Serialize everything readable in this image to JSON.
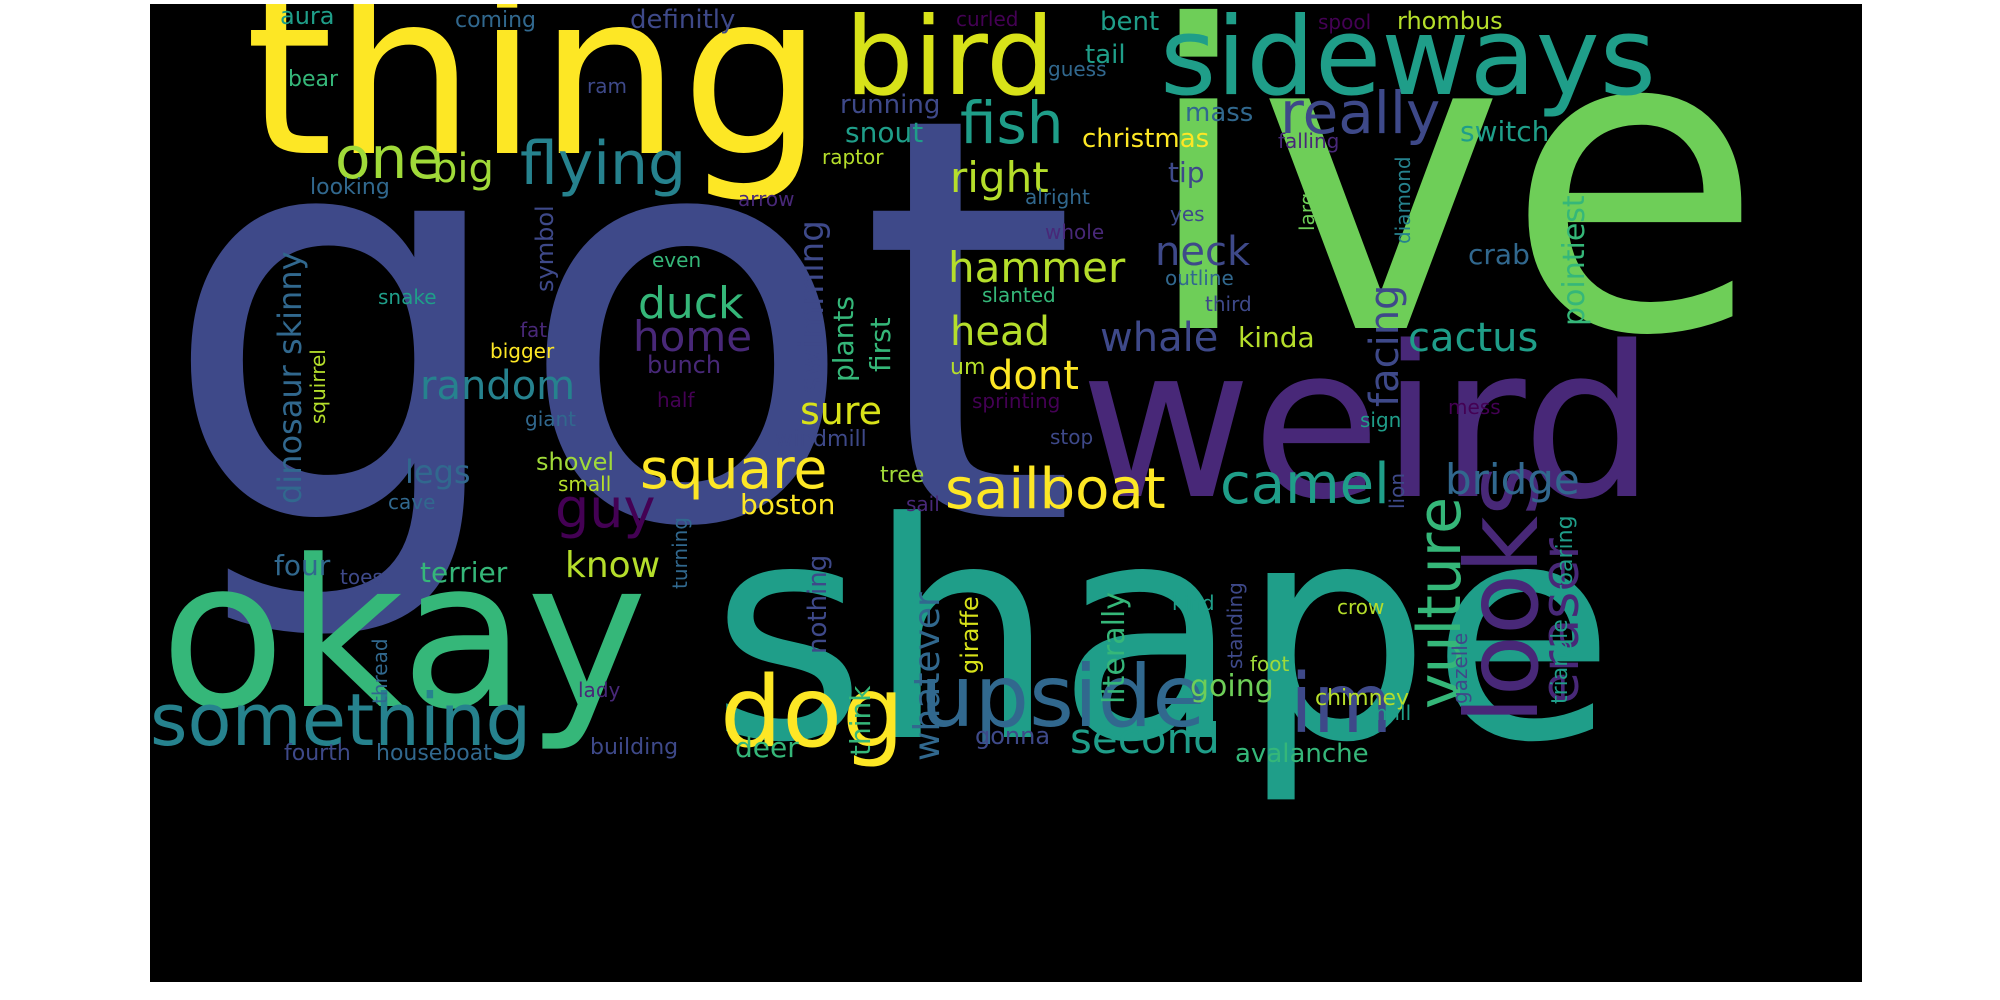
{
  "background": "#000000",
  "palette": {
    "yellow": "#fde725",
    "lime": "#b5de2b",
    "green": "#6ece58",
    "sea": "#35b779",
    "teal": "#1f9e89",
    "cyan": "#26828e",
    "blue": "#31688e",
    "indigo": "#3e4989",
    "purple": "#482878",
    "violet": "#440154"
  },
  "words": [
    {
      "text": "got",
      "color": "#3e4989"
    },
    {
      "text": "ive",
      "color": "#6ece58"
    },
    {
      "text": "shape",
      "color": "#1f9e89"
    },
    {
      "text": "thing",
      "color": "#fde725"
    },
    {
      "text": "weird",
      "color": "#482878"
    },
    {
      "text": "okay",
      "color": "#35b779"
    },
    {
      "text": "sideways",
      "color": "#1f9e89"
    },
    {
      "text": "bird",
      "color": "#d8e219"
    },
    {
      "text": "looks",
      "color": "#482878"
    },
    {
      "text": "dog",
      "color": "#fde725"
    },
    {
      "text": "upside",
      "color": "#31688e"
    },
    {
      "text": "something",
      "color": "#26828e"
    },
    {
      "text": "im",
      "color": "#3e4989"
    },
    {
      "text": "flying",
      "color": "#26828e"
    },
    {
      "text": "fish",
      "color": "#1f9e89"
    },
    {
      "text": "really",
      "color": "#3e4989"
    },
    {
      "text": "one",
      "color": "#a0da39"
    },
    {
      "text": "square",
      "color": "#fde725"
    },
    {
      "text": "sailboat",
      "color": "#fde725"
    },
    {
      "text": "camel",
      "color": "#1f9e89"
    },
    {
      "text": "vulture",
      "color": "#35b779"
    },
    {
      "text": "eraser",
      "color": "#482878"
    },
    {
      "text": "guy",
      "color": "#440154"
    },
    {
      "text": "bridge",
      "color": "#31688e"
    },
    {
      "text": "second",
      "color": "#1f9e89"
    },
    {
      "text": "duck",
      "color": "#35b779"
    },
    {
      "text": "home",
      "color": "#482878"
    },
    {
      "text": "random",
      "color": "#26828e"
    },
    {
      "text": "big",
      "color": "#a0da39"
    },
    {
      "text": "right",
      "color": "#b5de2b"
    },
    {
      "text": "hammer",
      "color": "#b5de2b"
    },
    {
      "text": "head",
      "color": "#b5de2b"
    },
    {
      "text": "neck",
      "color": "#3e4989"
    },
    {
      "text": "whale",
      "color": "#3e4989"
    },
    {
      "text": "cactus",
      "color": "#1f9e89"
    },
    {
      "text": "facing",
      "color": "#3e4989"
    },
    {
      "text": "dont",
      "color": "#fde725"
    },
    {
      "text": "sure",
      "color": "#d8e219"
    },
    {
      "text": "swimming",
      "color": "#3e4989"
    },
    {
      "text": "whatever",
      "color": "#31688e"
    },
    {
      "text": "dinosaur skinny",
      "color": "#31688e"
    },
    {
      "text": "know",
      "color": "#b5de2b"
    },
    {
      "text": "legs",
      "color": "#31688e"
    },
    {
      "text": "terrier",
      "color": "#35b779"
    },
    {
      "text": "four",
      "color": "#31688e"
    },
    {
      "text": "boston",
      "color": "#fde725"
    },
    {
      "text": "going",
      "color": "#6ece58"
    },
    {
      "text": "literally",
      "color": "#35b779"
    },
    {
      "text": "avalanche",
      "color": "#35b779"
    },
    {
      "text": "snout",
      "color": "#1f9e89"
    },
    {
      "text": "christmas",
      "color": "#fde725"
    },
    {
      "text": "mass",
      "color": "#31688e"
    },
    {
      "text": "switch",
      "color": "#1f9e89"
    },
    {
      "text": "tip",
      "color": "#3e4989"
    },
    {
      "text": "crab",
      "color": "#31688e"
    },
    {
      "text": "pointiest",
      "color": "#35b779"
    },
    {
      "text": "kinda",
      "color": "#b5de2b"
    },
    {
      "text": "plants",
      "color": "#35b779"
    },
    {
      "text": "first",
      "color": "#35b779"
    },
    {
      "text": "think",
      "color": "#35b779"
    },
    {
      "text": "nothing",
      "color": "#3e4989"
    },
    {
      "text": "giraffe",
      "color": "#d8e219"
    },
    {
      "text": "deer",
      "color": "#35b779"
    },
    {
      "text": "gonna",
      "color": "#3e4989"
    },
    {
      "text": "chimney",
      "color": "#b5de2b"
    },
    {
      "text": "triangle",
      "color": "#1f9e89"
    },
    {
      "text": "roaring",
      "color": "#1f9e89"
    },
    {
      "text": "running",
      "color": "#3e4989"
    },
    {
      "text": "tail",
      "color": "#1f9e89"
    },
    {
      "text": "bent",
      "color": "#1f9e89"
    },
    {
      "text": "definitly",
      "color": "#3e4989"
    },
    {
      "text": "coming",
      "color": "#31688e"
    },
    {
      "text": "aura",
      "color": "#1f9e89"
    },
    {
      "text": "bear",
      "color": "#35b779"
    },
    {
      "text": "ram",
      "color": "#3e4989"
    },
    {
      "text": "guess",
      "color": "#31688e"
    },
    {
      "text": "curled",
      "color": "#440154"
    },
    {
      "text": "spool",
      "color": "#440154"
    },
    {
      "text": "rhombus",
      "color": "#b5de2b"
    },
    {
      "text": "raptor",
      "color": "#b5de2b"
    },
    {
      "text": "falling",
      "color": "#482878"
    },
    {
      "text": "alright",
      "color": "#31688e"
    },
    {
      "text": "looking",
      "color": "#31688e"
    },
    {
      "text": "arrow",
      "color": "#482878"
    },
    {
      "text": "yes",
      "color": "#3e4989"
    },
    {
      "text": "large",
      "color": "#6ece58"
    },
    {
      "text": "diamond",
      "color": "#26828e"
    },
    {
      "text": "whole",
      "color": "#482878"
    },
    {
      "text": "outline",
      "color": "#31688e"
    },
    {
      "text": "third",
      "color": "#3e4989"
    },
    {
      "text": "even",
      "color": "#35b779"
    },
    {
      "text": "snake",
      "color": "#1f9e89"
    },
    {
      "text": "symbol",
      "color": "#3e4989"
    },
    {
      "text": "fat",
      "color": "#482878"
    },
    {
      "text": "bigger",
      "color": "#fde725"
    },
    {
      "text": "bunch",
      "color": "#482878"
    },
    {
      "text": "slanted",
      "color": "#35b779"
    },
    {
      "text": "um",
      "color": "#b5de2b"
    },
    {
      "text": "half",
      "color": "#440154"
    },
    {
      "text": "sprinting",
      "color": "#440154"
    },
    {
      "text": "mess",
      "color": "#440154"
    },
    {
      "text": "squirrel",
      "color": "#b5de2b"
    },
    {
      "text": "giant",
      "color": "#31688e"
    },
    {
      "text": "windmill",
      "color": "#3e4989"
    },
    {
      "text": "stop",
      "color": "#3e4989"
    },
    {
      "text": "sign",
      "color": "#1f9e89"
    },
    {
      "text": "lion",
      "color": "#3e4989"
    },
    {
      "text": "shovel",
      "color": "#a0da39"
    },
    {
      "text": "small",
      "color": "#b5de2b"
    },
    {
      "text": "tree",
      "color": "#a0da39"
    },
    {
      "text": "cave",
      "color": "#31688e"
    },
    {
      "text": "sail",
      "color": "#482878"
    },
    {
      "text": "turning",
      "color": "#31688e"
    },
    {
      "text": "toes",
      "color": "#3e4989"
    },
    {
      "text": "kind",
      "color": "#1f9e89"
    },
    {
      "text": "standing",
      "color": "#3e4989"
    },
    {
      "text": "crow",
      "color": "#b5de2b"
    },
    {
      "text": "gazelle",
      "color": "#3e4989"
    },
    {
      "text": "thread",
      "color": "#31688e"
    },
    {
      "text": "foot",
      "color": "#a0da39"
    },
    {
      "text": "lady",
      "color": "#482878"
    },
    {
      "text": "mill",
      "color": "#1f9e89"
    },
    {
      "text": "fourth",
      "color": "#3e4989"
    },
    {
      "text": "houseboat",
      "color": "#31688e"
    },
    {
      "text": "building",
      "color": "#3e4989"
    }
  ]
}
